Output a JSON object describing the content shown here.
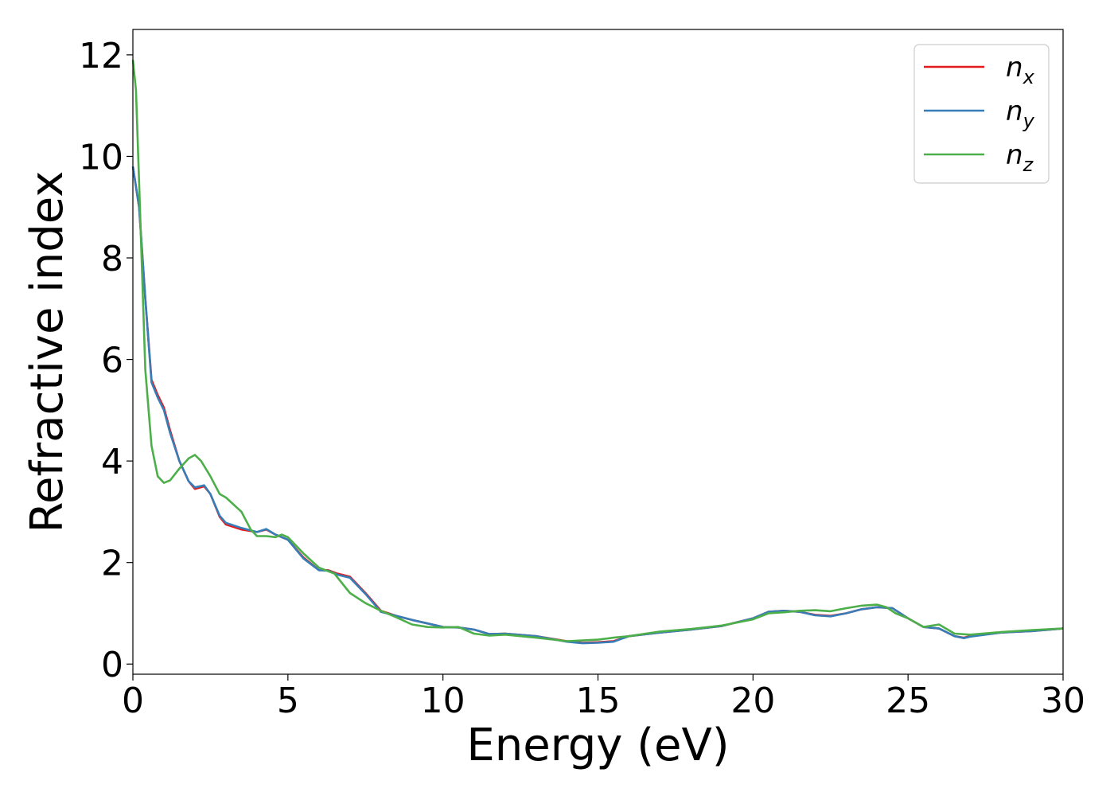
{
  "chart_data": {
    "type": "line",
    "xlabel": "Energy (eV)",
    "ylabel": "Refractive index",
    "xlim": [
      0,
      30
    ],
    "ylim": [
      -0.2,
      12.5
    ],
    "xticks": [
      0,
      5,
      10,
      15,
      20,
      25,
      30
    ],
    "yticks": [
      0,
      2,
      4,
      6,
      8,
      10,
      12
    ],
    "grid": false,
    "legend_position": "top-right",
    "series": [
      {
        "name": "n_x",
        "base": "n",
        "sub": "x",
        "color": "#e41a1c",
        "x": [
          0,
          0.2,
          0.4,
          0.6,
          0.8,
          1.0,
          1.2,
          1.5,
          1.8,
          2.0,
          2.3,
          2.5,
          2.8,
          3.0,
          3.5,
          4.0,
          4.3,
          4.6,
          5.0,
          5.5,
          6.0,
          6.3,
          6.6,
          7.0,
          7.5,
          8.0,
          8.5,
          9.0,
          9.5,
          10.0,
          10.5,
          11.0,
          11.5,
          12.0,
          13.0,
          14.0,
          14.5,
          15.0,
          15.5,
          16.0,
          17.0,
          18.0,
          19.0,
          20.0,
          20.5,
          21.0,
          21.5,
          22.0,
          22.5,
          23.0,
          23.5,
          24.0,
          24.5,
          25.0,
          25.5,
          26.0,
          26.5,
          26.8,
          27.0,
          28.0,
          29.0,
          30.0
        ],
        "y": [
          9.8,
          9.0,
          7.2,
          5.6,
          5.3,
          5.05,
          4.6,
          4.0,
          3.6,
          3.45,
          3.5,
          3.35,
          2.9,
          2.75,
          2.65,
          2.6,
          2.65,
          2.55,
          2.45,
          2.1,
          1.85,
          1.85,
          1.78,
          1.72,
          1.4,
          1.05,
          0.95,
          0.87,
          0.8,
          0.73,
          0.72,
          0.68,
          0.59,
          0.6,
          0.55,
          0.45,
          0.42,
          0.43,
          0.45,
          0.55,
          0.62,
          0.68,
          0.75,
          0.9,
          1.03,
          1.05,
          1.03,
          0.97,
          0.95,
          1.0,
          1.08,
          1.12,
          1.1,
          0.9,
          0.73,
          0.7,
          0.55,
          0.52,
          0.55,
          0.62,
          0.65,
          0.7
        ]
      },
      {
        "name": "n_y",
        "base": "n",
        "sub": "y",
        "color": "#377eb8",
        "x": [
          0,
          0.2,
          0.4,
          0.6,
          0.8,
          1.0,
          1.2,
          1.5,
          1.8,
          2.0,
          2.3,
          2.5,
          2.8,
          3.0,
          3.5,
          4.0,
          4.3,
          4.6,
          5.0,
          5.5,
          6.0,
          6.3,
          6.6,
          7.0,
          7.5,
          8.0,
          8.5,
          9.0,
          9.5,
          10.0,
          10.5,
          11.0,
          11.5,
          12.0,
          13.0,
          14.0,
          14.5,
          15.0,
          15.5,
          16.0,
          17.0,
          18.0,
          19.0,
          20.0,
          20.5,
          21.0,
          21.5,
          22.0,
          22.5,
          23.0,
          23.5,
          24.0,
          24.5,
          25.0,
          25.5,
          26.0,
          26.5,
          26.8,
          27.0,
          28.0,
          29.0,
          30.0
        ],
        "y": [
          9.8,
          9.0,
          7.2,
          5.55,
          5.25,
          5.0,
          4.55,
          4.0,
          3.6,
          3.48,
          3.52,
          3.35,
          2.92,
          2.78,
          2.68,
          2.6,
          2.66,
          2.55,
          2.45,
          2.08,
          1.85,
          1.84,
          1.76,
          1.7,
          1.38,
          1.03,
          0.95,
          0.87,
          0.8,
          0.73,
          0.72,
          0.68,
          0.59,
          0.6,
          0.55,
          0.44,
          0.41,
          0.42,
          0.44,
          0.55,
          0.62,
          0.68,
          0.75,
          0.9,
          1.03,
          1.05,
          1.03,
          0.96,
          0.94,
          1.0,
          1.08,
          1.12,
          1.1,
          0.9,
          0.73,
          0.7,
          0.55,
          0.51,
          0.54,
          0.62,
          0.65,
          0.7
        ]
      },
      {
        "name": "n_z",
        "base": "n",
        "sub": "z",
        "color": "#4daf4a",
        "x": [
          0,
          0.1,
          0.2,
          0.4,
          0.6,
          0.8,
          1.0,
          1.2,
          1.5,
          1.8,
          2.0,
          2.2,
          2.5,
          2.8,
          3.0,
          3.5,
          3.8,
          4.0,
          4.3,
          4.6,
          4.8,
          5.0,
          5.5,
          6.0,
          6.5,
          7.0,
          7.5,
          8.0,
          8.5,
          9.0,
          9.5,
          10.0,
          10.5,
          11.0,
          11.5,
          12.0,
          13.0,
          14.0,
          15.0,
          15.5,
          16.0,
          17.0,
          18.0,
          19.0,
          20.0,
          20.5,
          21.0,
          21.5,
          22.0,
          22.5,
          23.0,
          23.5,
          24.0,
          24.3,
          24.6,
          25.0,
          25.5,
          26.0,
          26.5,
          27.0,
          28.0,
          29.0,
          30.0
        ],
        "y": [
          11.9,
          11.3,
          9.5,
          5.8,
          4.3,
          3.7,
          3.57,
          3.62,
          3.85,
          4.05,
          4.12,
          4.0,
          3.7,
          3.35,
          3.28,
          3.0,
          2.65,
          2.52,
          2.52,
          2.5,
          2.55,
          2.5,
          2.18,
          1.9,
          1.78,
          1.4,
          1.2,
          1.05,
          0.92,
          0.78,
          0.73,
          0.72,
          0.73,
          0.6,
          0.56,
          0.58,
          0.52,
          0.45,
          0.48,
          0.52,
          0.55,
          0.64,
          0.69,
          0.76,
          0.88,
          1.0,
          1.02,
          1.05,
          1.06,
          1.04,
          1.1,
          1.15,
          1.17,
          1.12,
          1.0,
          0.9,
          0.73,
          0.78,
          0.6,
          0.58,
          0.63,
          0.67,
          0.7
        ]
      }
    ]
  }
}
